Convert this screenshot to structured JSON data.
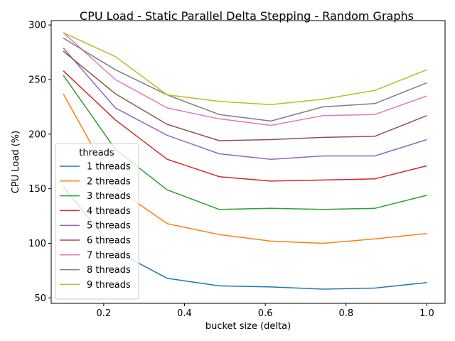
{
  "chart_data": {
    "type": "line",
    "title": "CPU Load - Static Parallel Delta Stepping - Random Graphs",
    "xlabel": "bucket size (delta)",
    "ylabel": "CPU Load (%)",
    "xlim": [
      0.07,
      1.045
    ],
    "ylim": [
      45,
      304
    ],
    "x_ticks": [
      0.2,
      0.4,
      0.6,
      0.8,
      1.0
    ],
    "x_tick_labels": [
      "0.2",
      "0.4",
      "0.6",
      "0.8",
      "1.0"
    ],
    "y_ticks": [
      50,
      100,
      150,
      200,
      250,
      300
    ],
    "y_tick_labels": [
      "50",
      "100",
      "150",
      "200",
      "250",
      "300"
    ],
    "grid": false,
    "legend_title": "threads",
    "legend_position": "lower-left",
    "x": [
      0.1,
      0.229,
      0.357,
      0.486,
      0.614,
      0.743,
      0.871,
      1.0
    ],
    "series": [
      {
        "name": "1 threads",
        "color": "#1f77b4",
        "values": [
          152,
          93,
          68,
          61,
          60,
          58,
          59,
          64
        ]
      },
      {
        "name": "2 threads",
        "color": "#ff7f0e",
        "values": [
          237,
          151,
          118,
          108,
          102,
          100,
          104,
          109
        ]
      },
      {
        "name": "3 threads",
        "color": "#2ca02c",
        "values": [
          254,
          186,
          149,
          131,
          132,
          131,
          132,
          144
        ]
      },
      {
        "name": "4 threads",
        "color": "#d62728",
        "values": [
          258,
          213,
          177,
          161,
          157,
          158,
          159,
          171
        ]
      },
      {
        "name": "5 threads",
        "color": "#9467bd",
        "values": [
          279,
          224,
          199,
          182,
          177,
          180,
          180,
          195
        ]
      },
      {
        "name": "6 threads",
        "color": "#8c564b",
        "values": [
          276,
          237,
          209,
          194,
          195,
          197,
          198,
          217
        ]
      },
      {
        "name": "7 threads",
        "color": "#e377c2",
        "values": [
          293,
          250,
          224,
          214,
          208,
          217,
          218,
          235
        ]
      },
      {
        "name": "8 threads",
        "color": "#7f7f7f",
        "values": [
          288,
          259,
          236,
          218,
          212,
          225,
          228,
          247
        ]
      },
      {
        "name": "9 threads",
        "color": "#bcbd22",
        "values": [
          293,
          271,
          236,
          230,
          227,
          232,
          240,
          259
        ]
      }
    ]
  }
}
